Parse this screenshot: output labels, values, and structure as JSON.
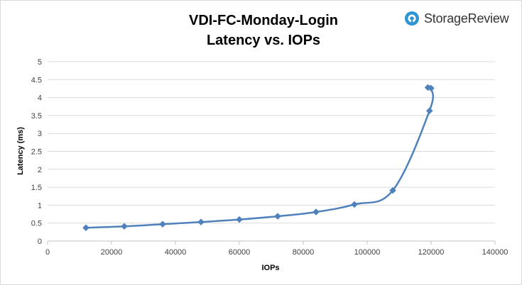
{
  "chart_data": {
    "type": "line",
    "title_line1": "VDI-FC-Monday-Login",
    "title_line2": "Latency vs. IOPs",
    "xlabel": "IOPs",
    "ylabel": "Latency (ms)",
    "xlim": [
      0,
      140000
    ],
    "ylim": [
      0,
      5
    ],
    "xticks": [
      0,
      20000,
      40000,
      60000,
      80000,
      100000,
      120000,
      140000
    ],
    "yticks": [
      0,
      0.5,
      1,
      1.5,
      2,
      2.5,
      3,
      3.5,
      4,
      4.5,
      5
    ],
    "grid": "horizontal",
    "legend": "none",
    "series": [
      {
        "color": "#4f81bd",
        "x": [
          12000,
          24000,
          36000,
          48000,
          60000,
          72000,
          84000,
          96000,
          108000,
          119500,
          120000,
          119000
        ],
        "y": [
          0.37,
          0.41,
          0.47,
          0.53,
          0.6,
          0.69,
          0.81,
          1.02,
          1.41,
          3.63,
          4.26,
          4.28
        ]
      }
    ]
  },
  "brand": {
    "name": "StorageReview",
    "logo_color": "#2e95d3"
  }
}
